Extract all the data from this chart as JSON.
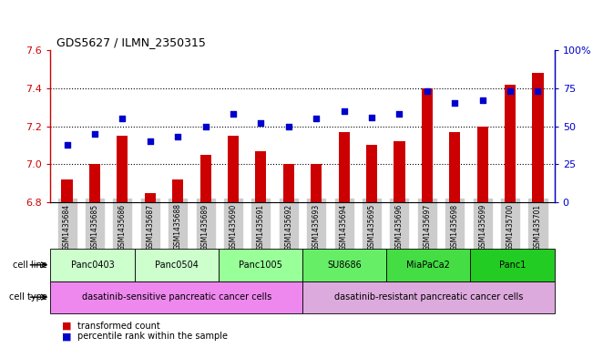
{
  "title": "GDS5627 / ILMN_2350315",
  "samples": [
    "GSM1435684",
    "GSM1435685",
    "GSM1435686",
    "GSM1435687",
    "GSM1435688",
    "GSM1435689",
    "GSM1435690",
    "GSM1435691",
    "GSM1435692",
    "GSM1435693",
    "GSM1435694",
    "GSM1435695",
    "GSM1435696",
    "GSM1435697",
    "GSM1435698",
    "GSM1435699",
    "GSM1435700",
    "GSM1435701"
  ],
  "bar_values": [
    6.92,
    7.0,
    7.15,
    6.85,
    6.92,
    7.05,
    7.15,
    7.07,
    7.0,
    7.0,
    7.17,
    7.1,
    7.12,
    7.4,
    7.17,
    7.2,
    7.42,
    7.48
  ],
  "dot_values": [
    38,
    45,
    55,
    40,
    43,
    50,
    58,
    52,
    50,
    55,
    60,
    56,
    58,
    73,
    65,
    67,
    73,
    73
  ],
  "bar_color": "#cc0000",
  "dot_color": "#0000cc",
  "ylim_left": [
    6.8,
    7.6
  ],
  "ylim_right": [
    0,
    100
  ],
  "yticks_left": [
    6.8,
    7.0,
    7.2,
    7.4,
    7.6
  ],
  "yticks_right": [
    0,
    25,
    50,
    75,
    100
  ],
  "ytick_labels_right": [
    "0",
    "25",
    "50",
    "75",
    "100%"
  ],
  "grid_values": [
    7.0,
    7.2,
    7.4
  ],
  "cell_lines": [
    {
      "label": "Panc0403",
      "start": 0,
      "end": 3,
      "color": "#ccffcc"
    },
    {
      "label": "Panc0504",
      "start": 3,
      "end": 6,
      "color": "#ccffcc"
    },
    {
      "label": "Panc1005",
      "start": 6,
      "end": 9,
      "color": "#99ff99"
    },
    {
      "label": "SU8686",
      "start": 9,
      "end": 12,
      "color": "#66ee66"
    },
    {
      "label": "MiaPaCa2",
      "start": 12,
      "end": 15,
      "color": "#44dd44"
    },
    {
      "label": "Panc1",
      "start": 15,
      "end": 18,
      "color": "#22cc22"
    }
  ],
  "cell_types": [
    {
      "label": "dasatinib-sensitive pancreatic cancer cells",
      "start": 0,
      "end": 9,
      "color": "#ee88ee"
    },
    {
      "label": "dasatinib-resistant pancreatic cancer cells",
      "start": 9,
      "end": 18,
      "color": "#ddaadd"
    }
  ],
  "legend_bar_label": "transformed count",
  "legend_dot_label": "percentile rank within the sample",
  "cell_line_label": "cell line",
  "cell_type_label": "cell type",
  "tick_label_bg": "#cccccc",
  "bar_width": 0.4
}
